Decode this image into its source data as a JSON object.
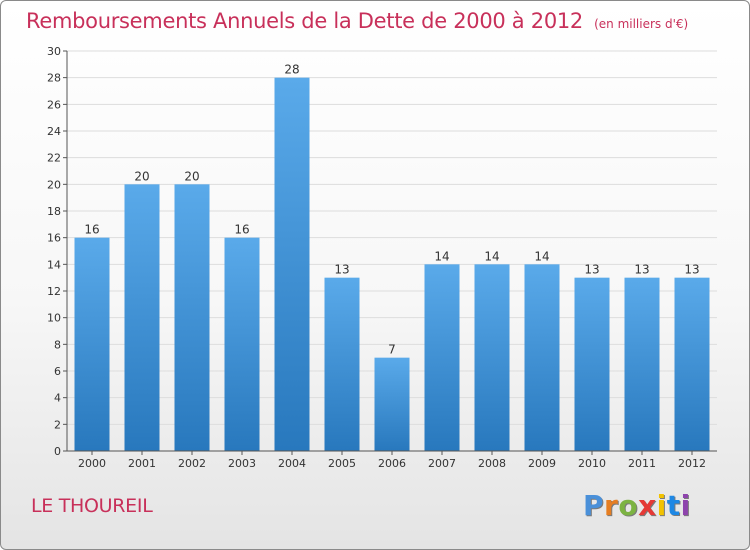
{
  "title": "Remboursements Annuels de la Dette de 2000 à 2012",
  "unit_label": "(en milliers d'€)",
  "place_name": "LE THOUREIL",
  "logo": {
    "text": "Proxiti",
    "letter_colors": [
      "#4a90d9",
      "#e67e22",
      "#7cb342",
      "#e53935",
      "#f2c200",
      "#1e88e5",
      "#8e44ad"
    ]
  },
  "colors": {
    "title": "#c8305a",
    "bar_top": "#5aaaea",
    "bar_bottom": "#2878bd",
    "grid": "#dddddd",
    "axis_text": "#333333"
  },
  "chart_data": {
    "type": "bar",
    "title": "Remboursements Annuels de la Dette de 2000 à 2012",
    "categories": [
      "2000",
      "2001",
      "2002",
      "2003",
      "2004",
      "2005",
      "2006",
      "2007",
      "2008",
      "2009",
      "2010",
      "2011",
      "2012"
    ],
    "values": [
      16,
      20,
      20,
      16,
      28,
      13,
      7,
      14,
      14,
      14,
      13,
      13,
      13
    ],
    "ylim": [
      0,
      30
    ],
    "yticks": [
      0,
      2,
      4,
      6,
      8,
      10,
      12,
      14,
      16,
      18,
      20,
      22,
      24,
      26,
      28,
      30
    ],
    "xlabel": "",
    "ylabel": "",
    "grid": true
  }
}
